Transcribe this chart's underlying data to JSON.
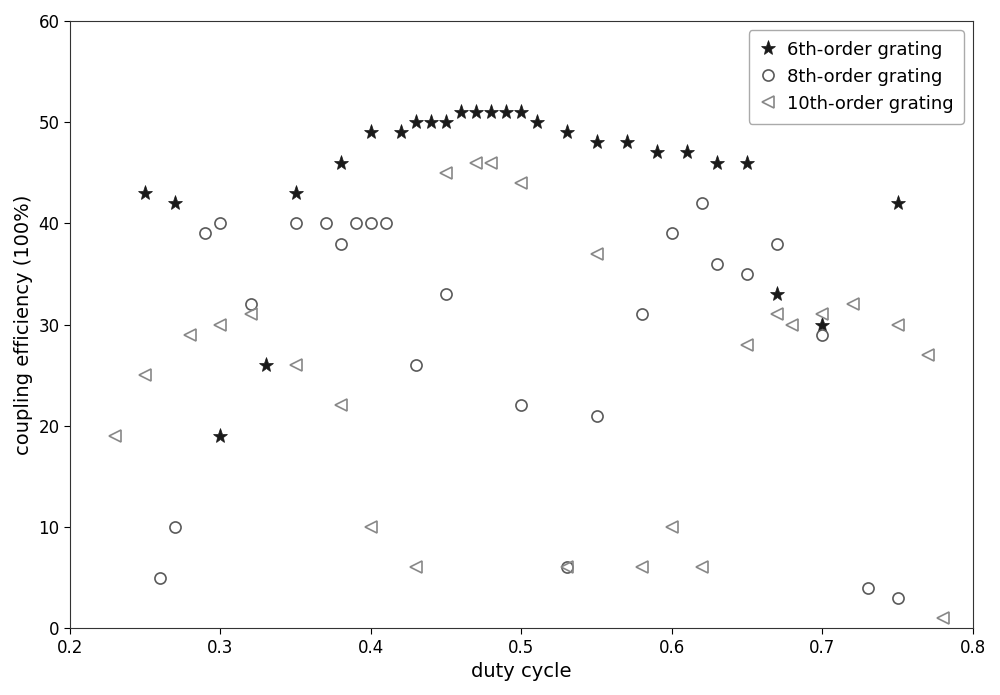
{
  "series_6th": {
    "x": [
      0.25,
      0.27,
      0.3,
      0.33,
      0.35,
      0.38,
      0.4,
      0.42,
      0.43,
      0.44,
      0.45,
      0.46,
      0.47,
      0.48,
      0.49,
      0.5,
      0.51,
      0.53,
      0.55,
      0.57,
      0.59,
      0.61,
      0.63,
      0.65,
      0.67,
      0.7,
      0.75
    ],
    "y": [
      43,
      42,
      19,
      26,
      43,
      46,
      49,
      49,
      50,
      50,
      50,
      51,
      51,
      51,
      51,
      51,
      50,
      49,
      48,
      48,
      47,
      47,
      46,
      46,
      33,
      30,
      42
    ],
    "color": "#1a1a1a",
    "marker": "*",
    "markersize": 11,
    "label": "6th-order grating"
  },
  "series_8th": {
    "x": [
      0.26,
      0.27,
      0.29,
      0.3,
      0.32,
      0.35,
      0.37,
      0.38,
      0.39,
      0.4,
      0.41,
      0.43,
      0.45,
      0.5,
      0.53,
      0.55,
      0.58,
      0.6,
      0.62,
      0.63,
      0.65,
      0.67,
      0.7,
      0.73,
      0.75
    ],
    "y": [
      5,
      10,
      39,
      40,
      32,
      40,
      40,
      38,
      40,
      40,
      40,
      26,
      33,
      22,
      6,
      21,
      31,
      39,
      42,
      36,
      35,
      38,
      29,
      4,
      3
    ],
    "color": "#5a5a5a",
    "marker": "o",
    "markersize": 8,
    "label": "8th-order grating"
  },
  "series_10th": {
    "x": [
      0.23,
      0.25,
      0.28,
      0.3,
      0.32,
      0.35,
      0.38,
      0.4,
      0.43,
      0.45,
      0.47,
      0.48,
      0.5,
      0.53,
      0.55,
      0.58,
      0.6,
      0.62,
      0.65,
      0.67,
      0.68,
      0.7,
      0.72,
      0.75,
      0.77,
      0.78
    ],
    "y": [
      19,
      25,
      29,
      30,
      31,
      26,
      22,
      10,
      6,
      45,
      46,
      46,
      44,
      6,
      37,
      6,
      10,
      6,
      28,
      31,
      30,
      31,
      32,
      30,
      27,
      1
    ],
    "color": "#888888",
    "marker": "<",
    "markersize": 8,
    "label": "10th-order grating"
  },
  "xlabel": "duty cycle",
  "ylabel": "coupling efficiency (100%)",
  "xlim": [
    0.2,
    0.8
  ],
  "ylim": [
    0,
    60
  ],
  "xticks": [
    0.2,
    0.3,
    0.4,
    0.5,
    0.6,
    0.7,
    0.8
  ],
  "yticks": [
    0,
    10,
    20,
    30,
    40,
    50,
    60
  ],
  "legend_loc": "upper right",
  "figsize": [
    10.0,
    6.95
  ],
  "dpi": 100,
  "bg_color": "#ffffff",
  "xlabel_fontsize": 14,
  "ylabel_fontsize": 14,
  "tick_fontsize": 12,
  "legend_fontsize": 13
}
